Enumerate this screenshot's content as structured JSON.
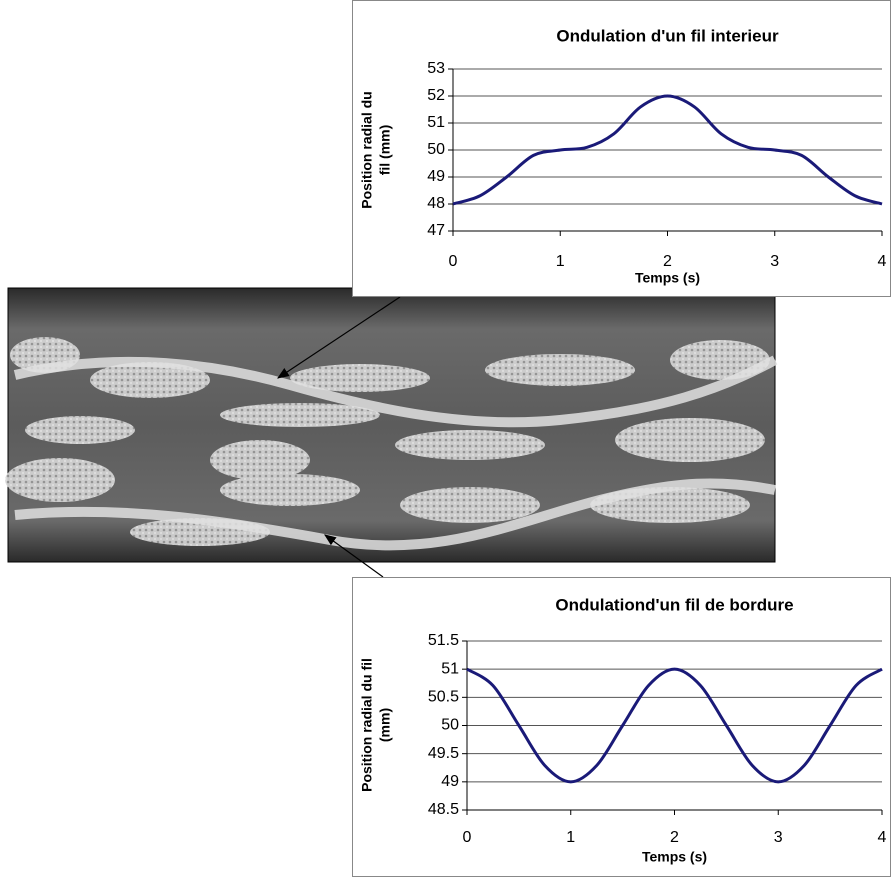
{
  "chart_data": [
    {
      "type": "line",
      "title": "Ondulation d'un fil interieur",
      "xlabel": "Temps (s)",
      "ylabel": [
        "Position radial du",
        "fil (mm)"
      ],
      "x": [
        0,
        0.25,
        0.5,
        0.75,
        1,
        1.25,
        1.5,
        1.75,
        2,
        2.25,
        2.5,
        2.75,
        3,
        3.25,
        3.5,
        3.75,
        4
      ],
      "series": [
        {
          "color": "#1a1a78",
          "values": [
            48,
            48.3,
            49,
            49.8,
            50,
            50.1,
            50.6,
            51.6,
            52,
            51.6,
            50.6,
            50.1,
            50,
            49.8,
            49,
            48.3,
            48
          ]
        }
      ],
      "xlim": [
        0,
        4
      ],
      "xticks": [
        0,
        1,
        2,
        3,
        4
      ],
      "ylim": [
        47,
        53
      ],
      "yticks": [
        47,
        48,
        49,
        50,
        51,
        52,
        53
      ],
      "grid": true
    },
    {
      "type": "line",
      "title": "Ondulationd'un fil de bordure",
      "xlabel": "Temps (s)",
      "ylabel": [
        "Position radial du fil",
        "(mm)"
      ],
      "x": [
        0,
        0.25,
        0.5,
        0.75,
        1,
        1.25,
        1.5,
        1.75,
        2,
        2.25,
        2.5,
        2.75,
        3,
        3.25,
        3.5,
        3.75,
        4
      ],
      "series": [
        {
          "color": "#1a1a78",
          "values": [
            51,
            50.71,
            50,
            49.29,
            49,
            49.29,
            50,
            50.71,
            51,
            50.71,
            50,
            49.29,
            49,
            49.29,
            50,
            50.71,
            51
          ]
        }
      ],
      "xlim": [
        0,
        4
      ],
      "xticks": [
        0,
        1,
        2,
        3,
        4
      ],
      "ylim": [
        48.5,
        51.5
      ],
      "yticks": [
        48.5,
        49,
        49.5,
        50,
        50.5,
        51,
        51.5
      ],
      "grid": true
    }
  ]
}
